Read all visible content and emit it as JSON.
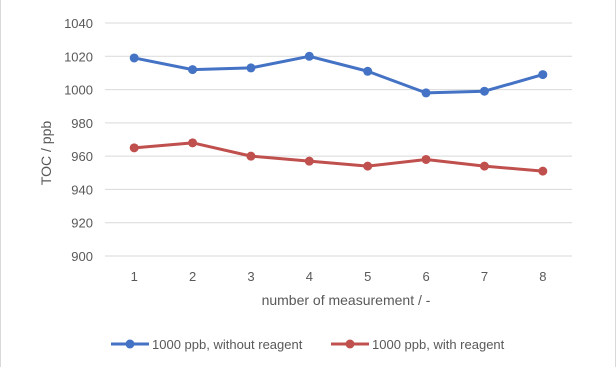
{
  "chart_data": {
    "type": "line",
    "title": "",
    "xlabel": "number of measurement / -",
    "ylabel": "TOC / ppb",
    "categories": [
      "1",
      "2",
      "3",
      "4",
      "5",
      "6",
      "7",
      "8"
    ],
    "ylim": [
      900,
      1040
    ],
    "yticks": [
      900,
      920,
      940,
      960,
      980,
      1000,
      1020,
      1040
    ],
    "grid": "horizontal",
    "legend_position": "bottom",
    "series": [
      {
        "name": "1000 ppb, without reagent",
        "color": "#4472c4",
        "values": [
          1019,
          1012,
          1013,
          1020,
          1011,
          998,
          999,
          1009
        ]
      },
      {
        "name": "1000 ppb, with reagent",
        "color": "#c0504d",
        "values": [
          965,
          968,
          960,
          957,
          954,
          958,
          954,
          951
        ]
      }
    ]
  }
}
